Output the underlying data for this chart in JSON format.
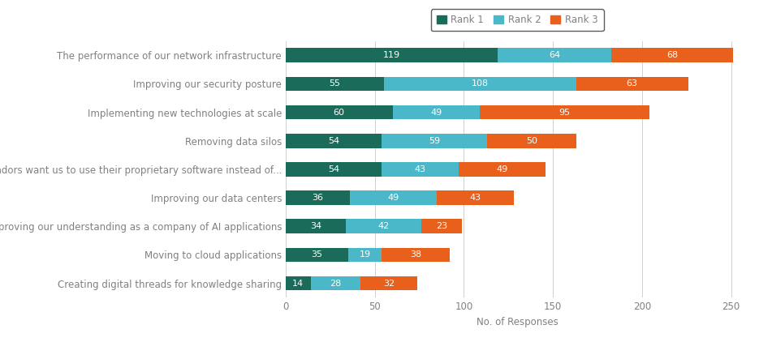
{
  "categories": [
    "The performance of our network infrastructure",
    "Improving our security posture",
    "Implementing new technologies at scale",
    "Removing data silos",
    "Vendors want us to use their proprietary software instead of...",
    "Improving our data centers",
    "Improving our understanding as a company of AI applications",
    "Moving to cloud applications",
    "Creating digital threads for knowledge sharing"
  ],
  "rank1": [
    119,
    55,
    60,
    54,
    54,
    36,
    34,
    35,
    14
  ],
  "rank2": [
    64,
    108,
    49,
    59,
    43,
    49,
    42,
    19,
    28
  ],
  "rank3": [
    68,
    63,
    95,
    50,
    49,
    43,
    23,
    38,
    32
  ],
  "color_rank1": "#1a6b5a",
  "color_rank2": "#4ab8c8",
  "color_rank3": "#e8601c",
  "xlabel": "No. of Responses",
  "xlim": [
    0,
    260
  ],
  "xticks": [
    0,
    50,
    100,
    150,
    200,
    250
  ],
  "legend_labels": [
    "Rank 1",
    "Rank 2",
    "Rank 3"
  ],
  "bar_height": 0.5,
  "label_fontsize": 8,
  "tick_fontsize": 8.5,
  "text_color": "#808080"
}
